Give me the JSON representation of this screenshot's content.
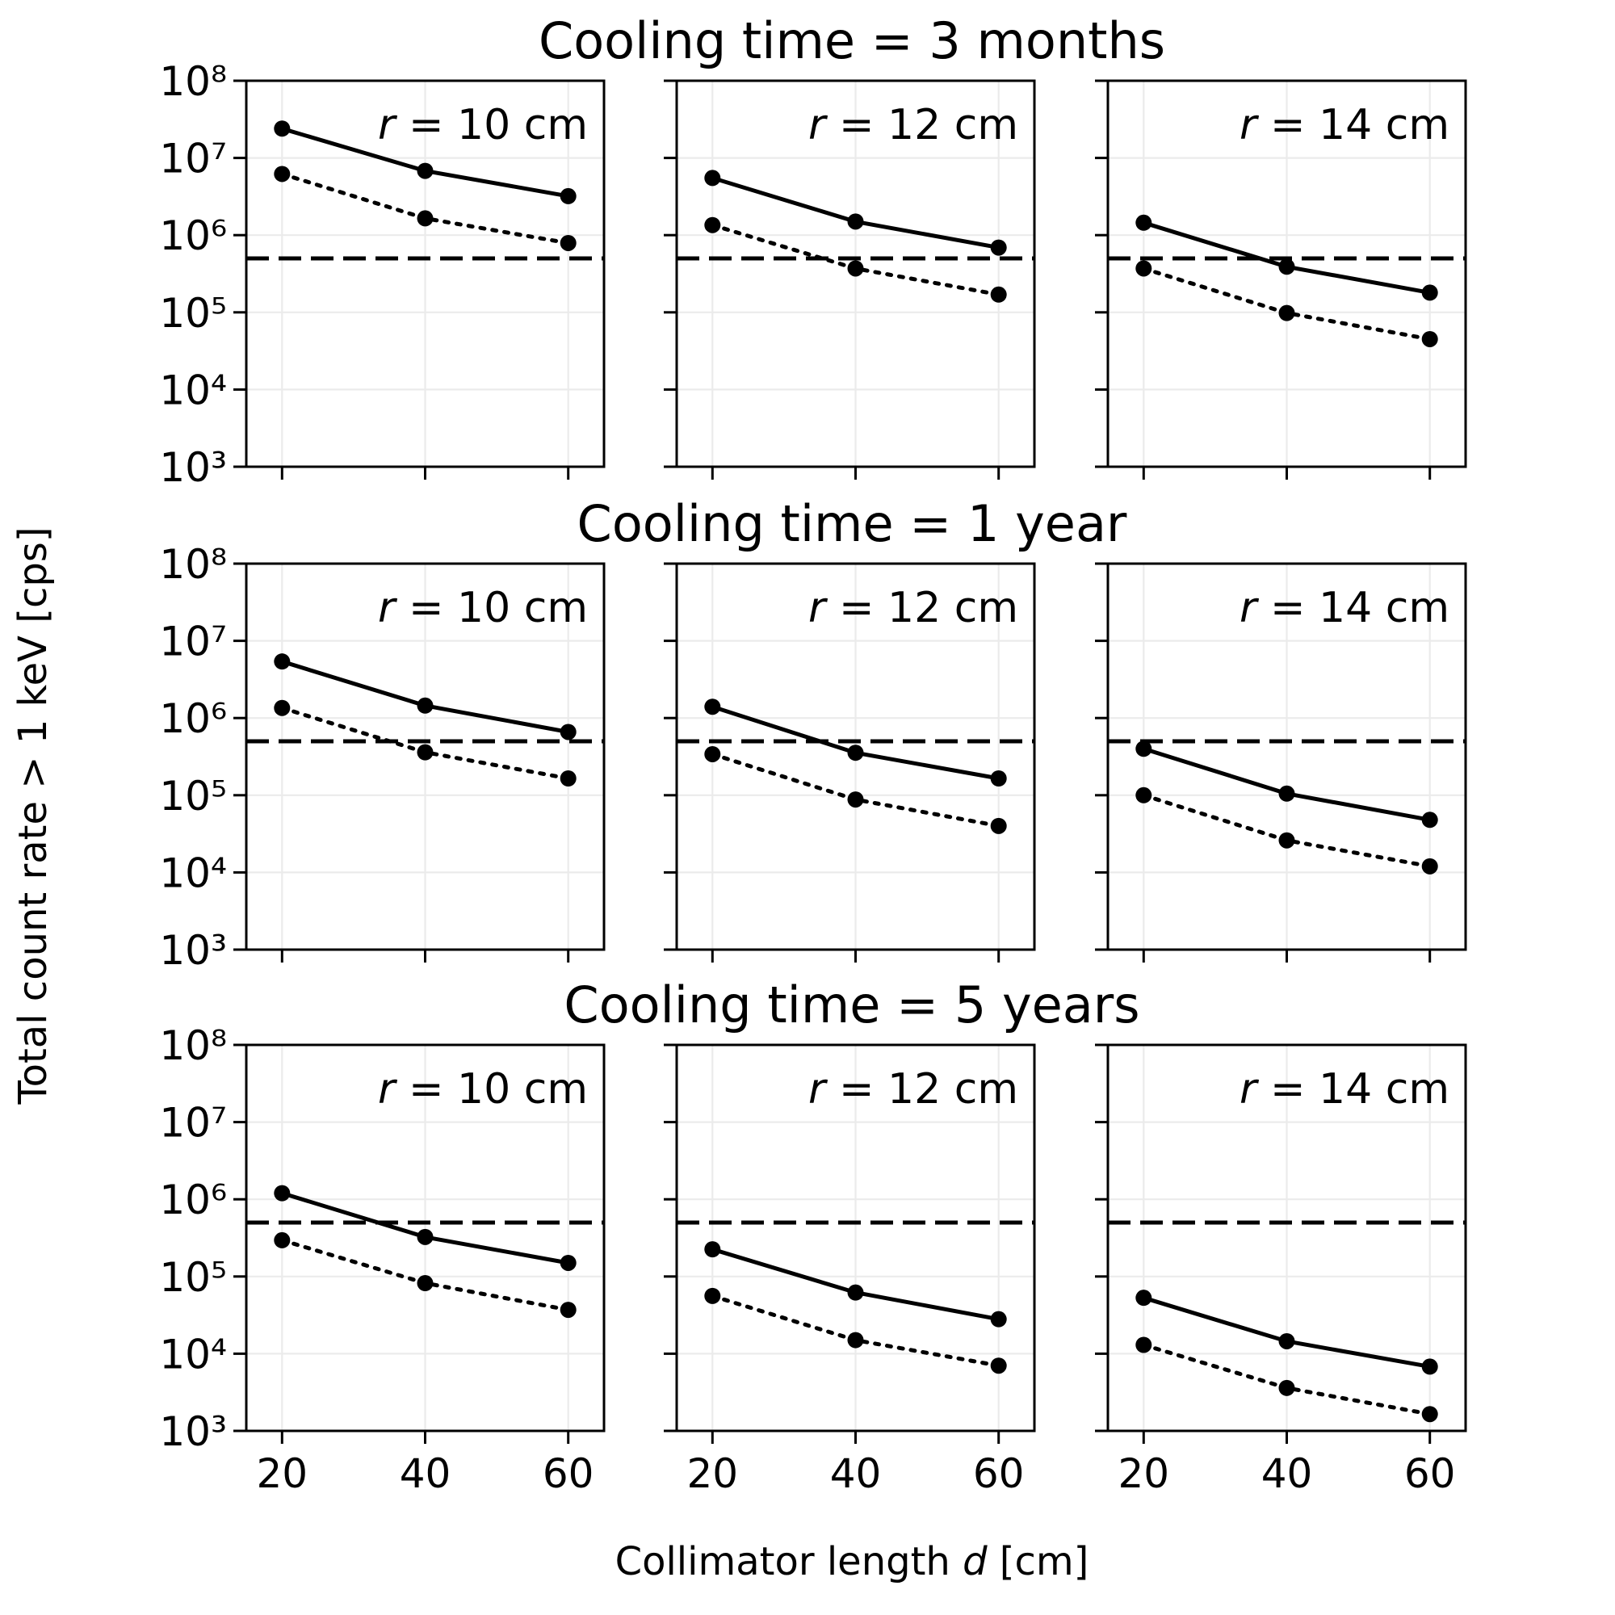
{
  "figure": {
    "ylabel": "Total count rate > 1 keV [cps]",
    "xlabel": "Collimator length d [cm]"
  },
  "chart_data": {
    "type": "line",
    "y_scale": "log",
    "ylim": [
      1000,
      100000000
    ],
    "xlim": [
      15,
      65
    ],
    "x_ticks": [
      20,
      40,
      60
    ],
    "y_ticks": [
      1000,
      10000,
      100000,
      1000000,
      10000000,
      100000000
    ],
    "grid": true,
    "threshold": 500000,
    "x": [
      20,
      40,
      60
    ],
    "rows": [
      {
        "title": "Cooling time = 3 months",
        "panels": [
          {
            "label": "r = 10 cm",
            "series": [
              {
                "style": "solid",
                "values": [
                  24000000,
                  6800000,
                  3200000
                ]
              },
              {
                "style": "dotted",
                "values": [
                  6200000,
                  1650000,
                  790000
                ]
              }
            ]
          },
          {
            "label": "r = 12 cm",
            "series": [
              {
                "style": "solid",
                "values": [
                  5500000,
                  1500000,
                  690000
                ]
              },
              {
                "style": "dotted",
                "values": [
                  1350000,
                  370000,
                  170000
                ]
              }
            ]
          },
          {
            "label": "r = 14 cm",
            "series": [
              {
                "style": "solid",
                "values": [
                  1450000,
                  390000,
                  180000
                ]
              },
              {
                "style": "dotted",
                "values": [
                  370000,
                  98000,
                  45000
                ]
              }
            ]
          }
        ]
      },
      {
        "title": "Cooling time = 1 year",
        "panels": [
          {
            "label": "r = 10 cm",
            "series": [
              {
                "style": "solid",
                "values": [
                  5400000,
                  1450000,
                  660000
                ]
              },
              {
                "style": "dotted",
                "values": [
                  1350000,
                  360000,
                  165000
                ]
              }
            ]
          },
          {
            "label": "r = 12 cm",
            "series": [
              {
                "style": "solid",
                "values": [
                  1400000,
                  355000,
                  165000
                ]
              },
              {
                "style": "dotted",
                "values": [
                  340000,
                  88000,
                  40000
                ]
              }
            ]
          },
          {
            "label": "r = 14 cm",
            "series": [
              {
                "style": "solid",
                "values": [
                  400000,
                  105000,
                  48000
                ]
              },
              {
                "style": "dotted",
                "values": [
                  100000,
                  26000,
                  12000
                ]
              }
            ]
          }
        ]
      },
      {
        "title": "Cooling time = 5 years",
        "panels": [
          {
            "label": "r = 10 cm",
            "series": [
              {
                "style": "solid",
                "values": [
                  1200000,
                  325000,
                  150000
                ]
              },
              {
                "style": "dotted",
                "values": [
                  295000,
                  82000,
                  37000
                ]
              }
            ]
          },
          {
            "label": "r = 12 cm",
            "series": [
              {
                "style": "solid",
                "values": [
                  225000,
                  62000,
                  28000
                ]
              },
              {
                "style": "dotted",
                "values": [
                  56000,
                  15000,
                  7000
                ]
              }
            ]
          },
          {
            "label": "r = 14 cm",
            "series": [
              {
                "style": "solid",
                "values": [
                  53000,
                  14500,
                  6800
                ]
              },
              {
                "style": "dotted",
                "values": [
                  13000,
                  3600,
                  1650
                ]
              }
            ]
          }
        ]
      }
    ]
  }
}
